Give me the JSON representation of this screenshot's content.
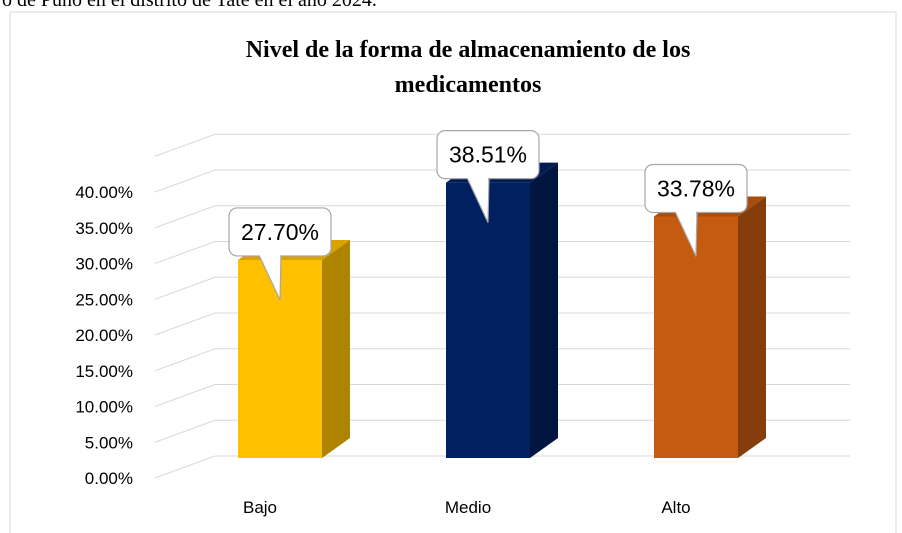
{
  "caption": "o de Puno en el distrito de Tate en el año 2024.",
  "chart_data": {
    "type": "bar3d",
    "title": "Nivel de la forma de almacenamiento de los medicamentos",
    "categories": [
      "Bajo",
      "Medio",
      "Alto"
    ],
    "values": [
      27.7,
      38.51,
      33.78
    ],
    "value_labels": [
      "27.70%",
      "38.51%",
      "33.78%"
    ],
    "colors": [
      "#ffc000",
      "#002060",
      "#c55a11"
    ],
    "ylim": [
      0,
      45
    ],
    "yticks": [
      {
        "value": 0,
        "label": "0.00%"
      },
      {
        "value": 5,
        "label": "5.00%"
      },
      {
        "value": 10,
        "label": "10.00%"
      },
      {
        "value": 15,
        "label": "15.00%"
      },
      {
        "value": 20,
        "label": "20.00%"
      },
      {
        "value": 25,
        "label": "25.00%"
      },
      {
        "value": 30,
        "label": "30.00%"
      },
      {
        "value": 35,
        "label": "35.00%"
      },
      {
        "value": 40,
        "label": "40.00%"
      }
    ],
    "grid": true
  }
}
